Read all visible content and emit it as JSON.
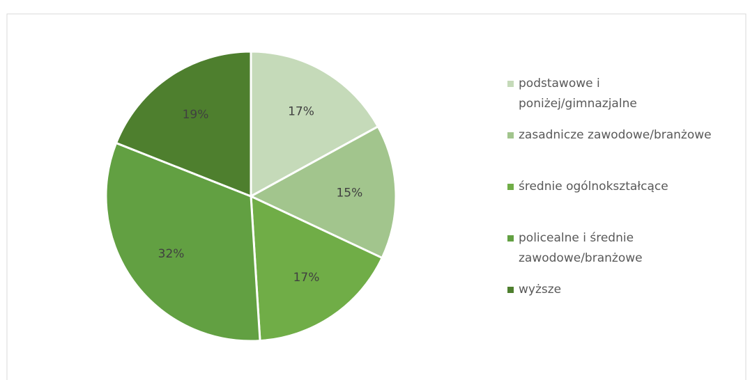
{
  "chart_data": {
    "type": "pie",
    "categories": [
      "podstawowe i\nponiżej/gimnazjalne",
      "zasadnicze zawodowe/branżowe",
      "średnie ogólnokształcące",
      "policealne i średnie\nzawodowe/branżowe",
      "wyższe"
    ],
    "values": [
      17,
      15,
      17,
      32,
      19
    ],
    "value_labels": [
      "17%",
      "15%",
      "17%",
      "32%",
      "19%"
    ],
    "colors": [
      "#c5dab9",
      "#a2c58d",
      "#70ad47",
      "#62a042",
      "#4e7f2e"
    ],
    "legend": "right"
  }
}
